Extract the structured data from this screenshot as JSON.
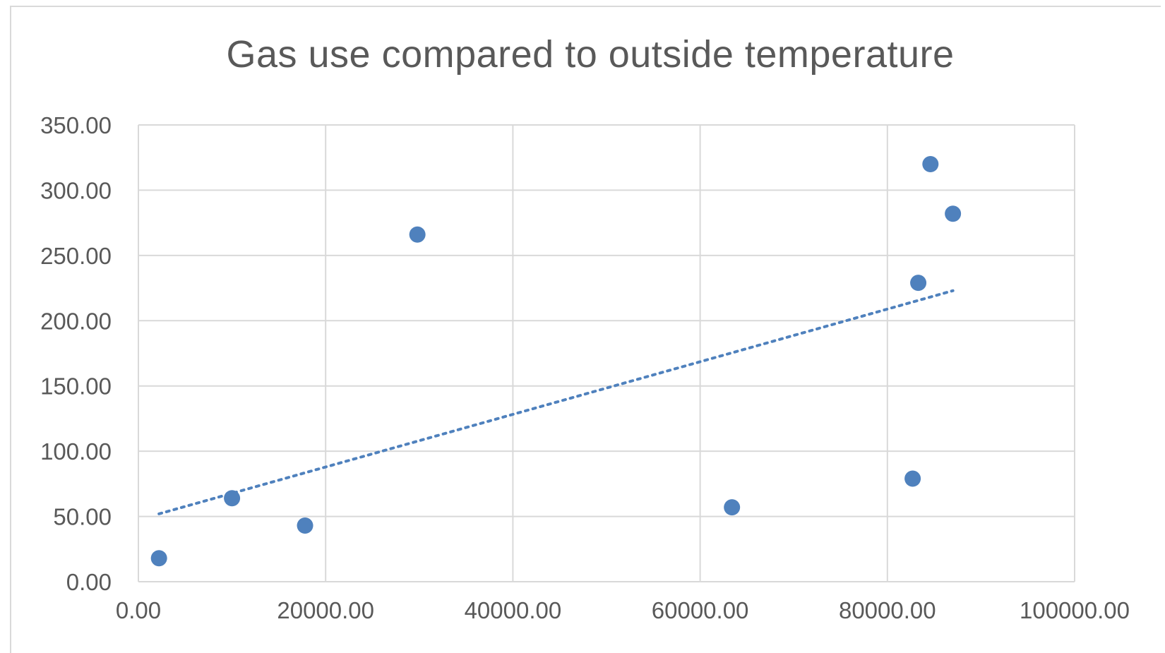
{
  "chart_data": {
    "type": "scatter",
    "title": "Gas use compared to outside temperature",
    "xlabel": "",
    "ylabel": "",
    "xlim": [
      0,
      100000
    ],
    "ylim": [
      0,
      350
    ],
    "x_ticks": [
      "0.00",
      "20000.00",
      "40000.00",
      "60000.00",
      "80000.00",
      "100000.00"
    ],
    "y_ticks": [
      "0.00",
      "50.00",
      "100.00",
      "150.00",
      "200.00",
      "250.00",
      "300.00",
      "350.00"
    ],
    "grid": true,
    "marker_color": "#4f81bd",
    "series": [
      {
        "points": [
          {
            "x": 2200,
            "y": 18
          },
          {
            "x": 10000,
            "y": 64
          },
          {
            "x": 17800,
            "y": 43
          },
          {
            "x": 29800,
            "y": 266
          },
          {
            "x": 63400,
            "y": 57
          },
          {
            "x": 82700,
            "y": 79
          },
          {
            "x": 83300,
            "y": 229
          },
          {
            "x": 84600,
            "y": 320
          },
          {
            "x": 87000,
            "y": 282
          }
        ]
      }
    ],
    "trendline": {
      "type": "linear",
      "style": "dotted",
      "x_start": 2200,
      "y_start": 52,
      "x_end": 87000,
      "y_end": 223
    }
  }
}
